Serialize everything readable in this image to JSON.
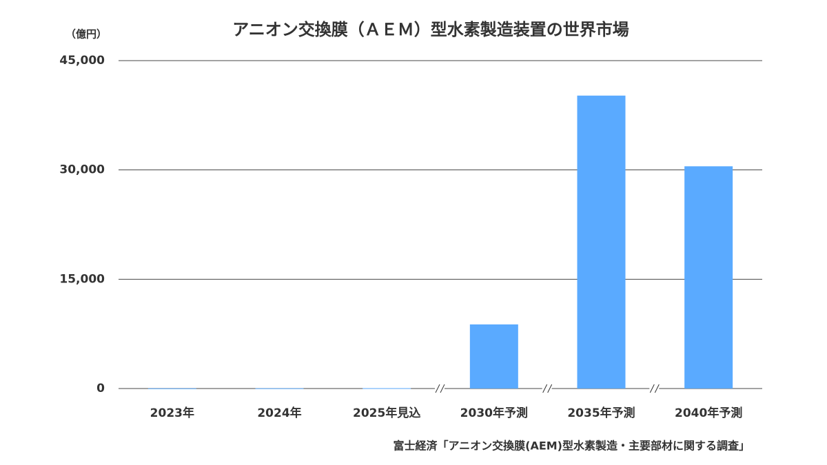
{
  "chart_data": {
    "type": "bar",
    "title": "アニオン交換膜（ＡＥＭ）型水素製造装置の世界市場",
    "y_unit": "（億円）",
    "source": "富士経済「アニオン交換膜(AEM)型水素製造・主要部材に関する調査」",
    "categories": [
      "2023年",
      "2024年",
      "2025年見込",
      "2030年予測",
      "2035年予測",
      "2040年予測"
    ],
    "values": [
      20,
      30,
      50,
      8800,
      40200,
      30500
    ],
    "color": "#5aaaff",
    "ylim": [
      0,
      45000
    ],
    "yticks": [
      0,
      {
        "value": 15000,
        "label": "15,000"
      },
      {
        "value": 30000,
        "label": "30,000"
      },
      {
        "value": 45000,
        "label": "45,000"
      }
    ],
    "grid": true
  }
}
